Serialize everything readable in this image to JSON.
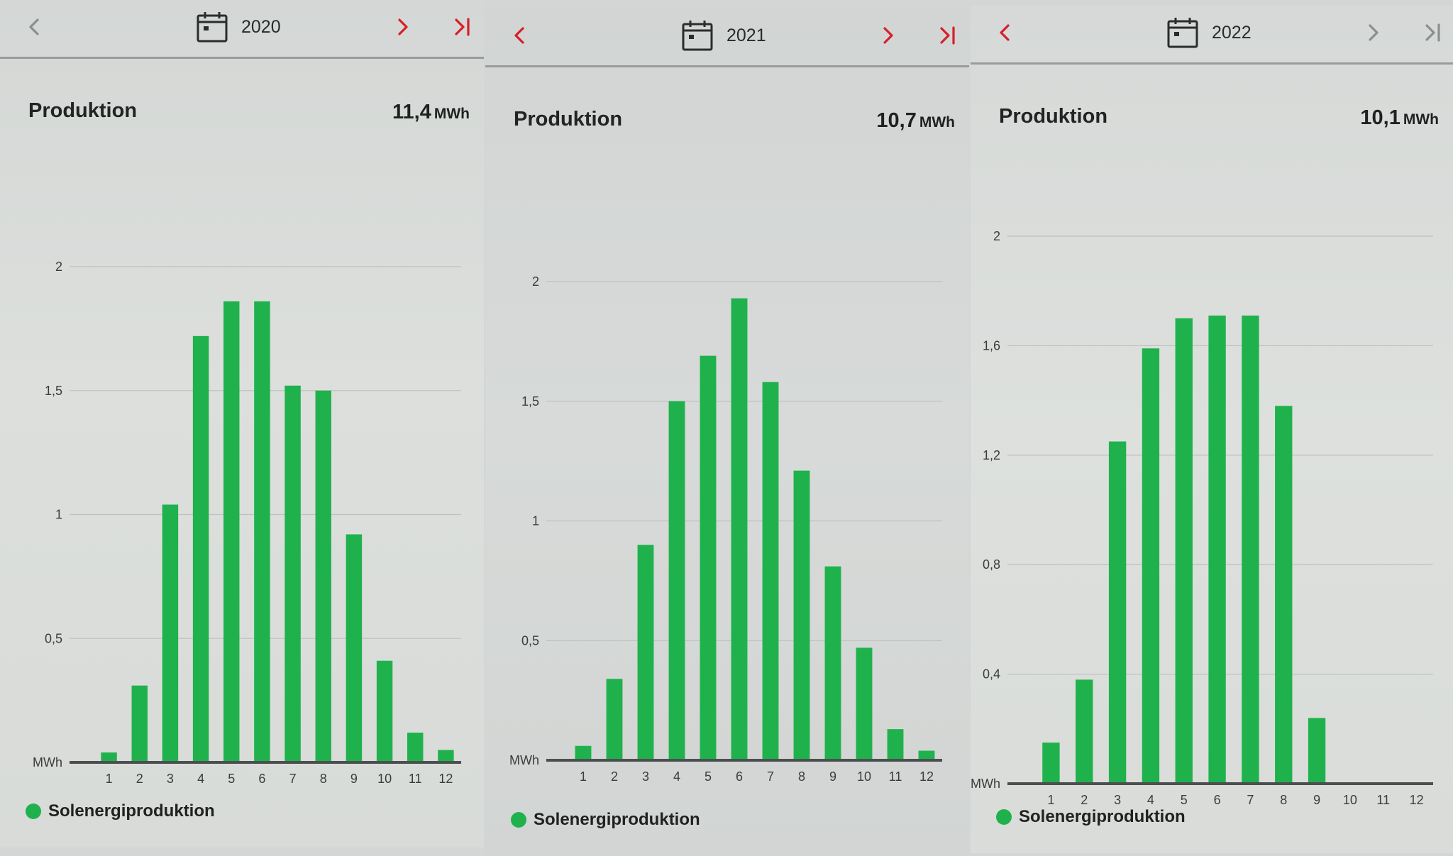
{
  "colors": {
    "bar": "#1fb24c",
    "nav_active": "#d6202a",
    "nav_disabled": "#8d8f8e",
    "text": "#222423"
  },
  "icons": {
    "prev": "chevron-left-icon",
    "next": "chevron-right-icon",
    "last": "skip-to-end-icon",
    "date": "calendar-icon"
  },
  "panels": [
    {
      "nav": {
        "prev_enabled": false,
        "next_enabled": true,
        "last_enabled": true
      },
      "year": "2020",
      "section_title": "Produktion",
      "total_value": "11,4",
      "total_unit": "MWh",
      "legend_label": "Solenergiproduktion"
    },
    {
      "nav": {
        "prev_enabled": true,
        "next_enabled": true,
        "last_enabled": true
      },
      "year": "2021",
      "section_title": "Produktion",
      "total_value": "10,7",
      "total_unit": "MWh",
      "legend_label": "Solenergiproduktion"
    },
    {
      "nav": {
        "prev_enabled": true,
        "next_enabled": false,
        "last_enabled": false
      },
      "year": "2022",
      "section_title": "Produktion",
      "total_value": "10,1",
      "total_unit": "MWh",
      "legend_label": "Solenergiproduktion"
    }
  ],
  "chart_data": [
    {
      "type": "bar",
      "title": "Produktion",
      "ylabel": "MWh",
      "categories": [
        "1",
        "2",
        "3",
        "4",
        "5",
        "6",
        "7",
        "8",
        "9",
        "10",
        "11",
        "12"
      ],
      "series": [
        {
          "name": "Solenergiproduktion",
          "values": [
            0.04,
            0.31,
            1.04,
            1.72,
            1.86,
            1.86,
            1.52,
            1.5,
            0.92,
            0.41,
            0.12,
            0.05
          ]
        }
      ],
      "ylim": [
        0,
        2
      ],
      "yticks": [
        {
          "value": 0.5,
          "label": "0,5"
        },
        {
          "value": 1,
          "label": "1"
        },
        {
          "value": 1.5,
          "label": "1,5"
        },
        {
          "value": 2,
          "label": "2"
        }
      ],
      "grid": true,
      "legend": "bottom-left"
    },
    {
      "type": "bar",
      "title": "Produktion",
      "ylabel": "MWh",
      "categories": [
        "1",
        "2",
        "3",
        "4",
        "5",
        "6",
        "7",
        "8",
        "9",
        "10",
        "11",
        "12"
      ],
      "series": [
        {
          "name": "Solenergiproduktion",
          "values": [
            0.06,
            0.34,
            0.9,
            1.5,
            1.69,
            1.93,
            1.58,
            1.21,
            0.81,
            0.47,
            0.13,
            0.04
          ]
        }
      ],
      "ylim": [
        0,
        2
      ],
      "yticks": [
        {
          "value": 0.5,
          "label": "0,5"
        },
        {
          "value": 1,
          "label": "1"
        },
        {
          "value": 1.5,
          "label": "1,5"
        },
        {
          "value": 2,
          "label": "2"
        }
      ],
      "grid": true,
      "legend": "bottom-left"
    },
    {
      "type": "bar",
      "title": "Produktion",
      "ylabel": "MWh",
      "categories": [
        "1",
        "2",
        "3",
        "4",
        "5",
        "6",
        "7",
        "8",
        "9",
        "10",
        "11",
        "12"
      ],
      "series": [
        {
          "name": "Solenergiproduktion",
          "values": [
            0.15,
            0.38,
            1.25,
            1.59,
            1.7,
            1.71,
            1.71,
            1.38,
            0.24,
            0,
            0,
            0
          ]
        }
      ],
      "ylim": [
        0,
        2
      ],
      "yticks": [
        {
          "value": 0.4,
          "label": "0,4"
        },
        {
          "value": 0.8,
          "label": "0,8"
        },
        {
          "value": 1.2,
          "label": "1,2"
        },
        {
          "value": 1.6,
          "label": "1,6"
        },
        {
          "value": 2,
          "label": "2"
        }
      ],
      "grid": true,
      "legend": "bottom-left"
    }
  ]
}
